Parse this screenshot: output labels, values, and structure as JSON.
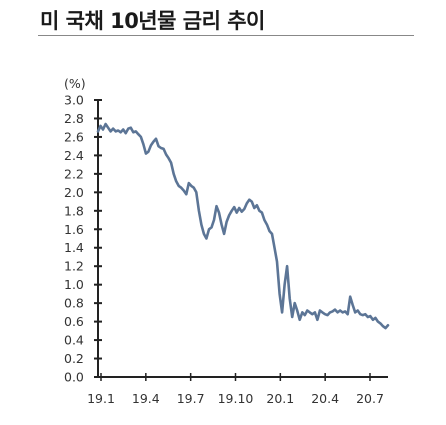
{
  "title": "미 국채 10년물 금리 추이",
  "chart_data": {
    "type": "line",
    "title": "미 국채 10년물 금리 추이",
    "unit": "(%)",
    "ylim": [
      0.0,
      3.0
    ],
    "y_ticks": [
      "0.0",
      "0.2",
      "0.4",
      "0.6",
      "0.8",
      "1.0",
      "1.2",
      "1.4",
      "1.6",
      "1.8",
      "2.0",
      "2.2",
      "2.4",
      "2.6",
      "2.8",
      "3.0"
    ],
    "x_ticks": [
      "19.1",
      "19.4",
      "19.7",
      "19.10",
      "20.1",
      "20.4",
      "20.7"
    ],
    "legend": "none",
    "grid": false,
    "color": "#5c7596",
    "series": [
      {
        "values": [
          2.66,
          2.72,
          2.68,
          2.74,
          2.7,
          2.66,
          2.69,
          2.66,
          2.67,
          2.65,
          2.68,
          2.64,
          2.69,
          2.7,
          2.65,
          2.66,
          2.63,
          2.6,
          2.52,
          2.42,
          2.44,
          2.51,
          2.55,
          2.58,
          2.5,
          2.48,
          2.47,
          2.41,
          2.37,
          2.32,
          2.2,
          2.12,
          2.07,
          2.05,
          2.02,
          1.98,
          2.1,
          2.07,
          2.05,
          2.0,
          1.8,
          1.65,
          1.55,
          1.5,
          1.6,
          1.62,
          1.7,
          1.85,
          1.78,
          1.65,
          1.55,
          1.68,
          1.75,
          1.8,
          1.84,
          1.78,
          1.83,
          1.79,
          1.82,
          1.88,
          1.92,
          1.9,
          1.83,
          1.86,
          1.8,
          1.78,
          1.7,
          1.65,
          1.58,
          1.55,
          1.4,
          1.25,
          0.9,
          0.7,
          1.0,
          1.2,
          0.85,
          0.65,
          0.8,
          0.72,
          0.62,
          0.7,
          0.67,
          0.72,
          0.7,
          0.68,
          0.7,
          0.62,
          0.72,
          0.7,
          0.68,
          0.67,
          0.7,
          0.71,
          0.73,
          0.7,
          0.72,
          0.7,
          0.71,
          0.68,
          0.87,
          0.78,
          0.7,
          0.72,
          0.68,
          0.67,
          0.68,
          0.65,
          0.66,
          0.62,
          0.64,
          0.6,
          0.58,
          0.55,
          0.53,
          0.56
        ]
      }
    ]
  }
}
